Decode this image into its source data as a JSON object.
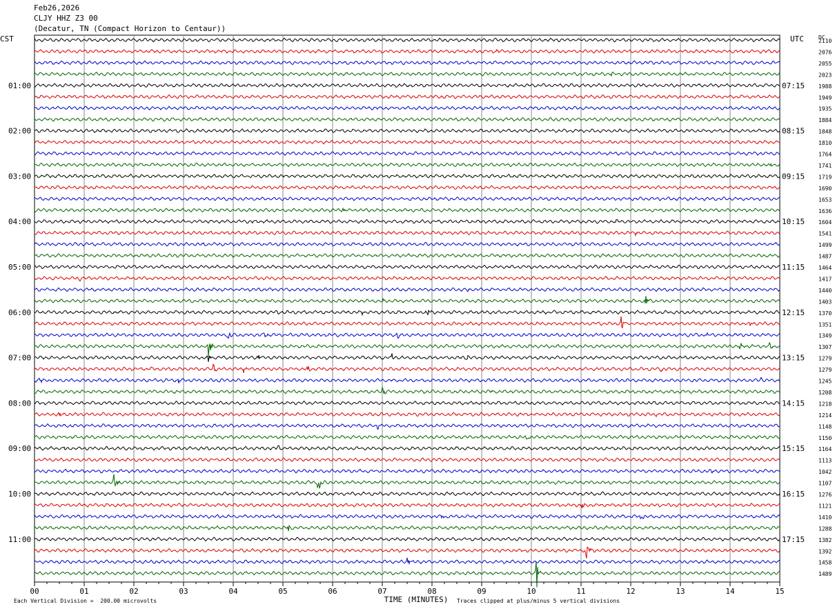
{
  "header": {
    "date": "Feb26,2026",
    "station": "CLJY HHZ Z3 00",
    "location": "(Decatur, TN (Compact Horizon to Centaur))"
  },
  "chart_data": {
    "type": "line",
    "title": "CLJY HHZ Z3 00",
    "left_axis_label": "CST",
    "right_axis_label": "UTC",
    "dc_label": "DC",
    "xlabel": "TIME (MINUTES)",
    "xlim": [
      0,
      15
    ],
    "x_ticks": [
      "00",
      "01",
      "02",
      "03",
      "04",
      "05",
      "06",
      "07",
      "08",
      "09",
      "10",
      "11",
      "12",
      "13",
      "14",
      "15"
    ],
    "left_hour_labels": [
      {
        "row": 4,
        "label": "01:00"
      },
      {
        "row": 8,
        "label": "02:00"
      },
      {
        "row": 12,
        "label": "03:00"
      },
      {
        "row": 16,
        "label": "04:00"
      },
      {
        "row": 20,
        "label": "05:00"
      },
      {
        "row": 24,
        "label": "06:00"
      },
      {
        "row": 28,
        "label": "07:00"
      },
      {
        "row": 32,
        "label": "08:00"
      },
      {
        "row": 36,
        "label": "09:00"
      },
      {
        "row": 40,
        "label": "10:00"
      },
      {
        "row": 44,
        "label": "11:00"
      }
    ],
    "right_hour_labels": [
      {
        "row": 4,
        "label": "07:15"
      },
      {
        "row": 8,
        "label": "08:15"
      },
      {
        "row": 12,
        "label": "09:15"
      },
      {
        "row": 16,
        "label": "10:15"
      },
      {
        "row": 20,
        "label": "11:15"
      },
      {
        "row": 24,
        "label": "12:15"
      },
      {
        "row": 28,
        "label": "13:15"
      },
      {
        "row": 32,
        "label": "14:15"
      },
      {
        "row": 36,
        "label": "15:15"
      },
      {
        "row": 40,
        "label": "16:15"
      },
      {
        "row": 44,
        "label": "17:15"
      }
    ],
    "trace_colors": [
      "#000000",
      "#dd0000",
      "#0000cc",
      "#006600"
    ],
    "dc_offsets": [
      2110,
      2076,
      2055,
      2023,
      1988,
      1949,
      1935,
      1884,
      1848,
      1810,
      1764,
      1741,
      1719,
      1690,
      1653,
      1636,
      1604,
      1541,
      1499,
      1487,
      1464,
      1417,
      1440,
      1403,
      1370,
      1351,
      1349,
      1307,
      1279,
      1279,
      1245,
      1208,
      1218,
      1214,
      1148,
      1150,
      1164,
      1113,
      1042,
      1107,
      1276,
      1121,
      1410,
      1288,
      1382,
      1392,
      1458,
      1489
    ],
    "events": [
      {
        "row": 1,
        "minute": 9.3,
        "amp": 3
      },
      {
        "row": 3,
        "minute": 11.6,
        "amp": 4
      },
      {
        "row": 11,
        "minute": 14.8,
        "amp": 3
      },
      {
        "row": 15,
        "minute": 6.2,
        "amp": 4
      },
      {
        "row": 16,
        "minute": 4.4,
        "amp": 3
      },
      {
        "row": 16,
        "minute": 11.7,
        "amp": 3
      },
      {
        "row": 17,
        "minute": 12.1,
        "amp": 4
      },
      {
        "row": 18,
        "minute": 3.4,
        "amp": 3
      },
      {
        "row": 21,
        "minute": 0.9,
        "amp": 5
      },
      {
        "row": 22,
        "minute": 8.7,
        "amp": 5
      },
      {
        "row": 23,
        "minute": 7.0,
        "amp": 4
      },
      {
        "row": 23,
        "minute": 12.3,
        "amp": 10
      },
      {
        "row": 24,
        "minute": 7.9,
        "amp": 12
      },
      {
        "row": 24,
        "minute": 6.6,
        "amp": 3
      },
      {
        "row": 24,
        "minute": 4.9,
        "amp": 3
      },
      {
        "row": 25,
        "minute": 11.8,
        "amp": 16
      },
      {
        "row": 25,
        "minute": 1.2,
        "amp": 4
      },
      {
        "row": 25,
        "minute": 2.8,
        "amp": 4
      },
      {
        "row": 25,
        "minute": 14.4,
        "amp": 4
      },
      {
        "row": 26,
        "minute": 3.9,
        "amp": 8
      },
      {
        "row": 26,
        "minute": 7.3,
        "amp": 7
      },
      {
        "row": 26,
        "minute": 4.6,
        "amp": 5
      },
      {
        "row": 26,
        "minute": 13.5,
        "amp": 5
      },
      {
        "row": 27,
        "minute": 3.5,
        "amp": 20
      },
      {
        "row": 27,
        "minute": 14.2,
        "amp": 7
      },
      {
        "row": 27,
        "minute": 14.8,
        "amp": 6
      },
      {
        "row": 28,
        "minute": 4.5,
        "amp": 7
      },
      {
        "row": 28,
        "minute": 7.2,
        "amp": 8
      },
      {
        "row": 28,
        "minute": 3.5,
        "amp": 9
      },
      {
        "row": 28,
        "minute": 8.7,
        "amp": 5
      },
      {
        "row": 29,
        "minute": 3.6,
        "amp": 9
      },
      {
        "row": 29,
        "minute": 2.3,
        "amp": 5
      },
      {
        "row": 29,
        "minute": 4.2,
        "amp": 6
      },
      {
        "row": 29,
        "minute": 5.5,
        "amp": 5
      },
      {
        "row": 29,
        "minute": 12.6,
        "amp": 5
      },
      {
        "row": 30,
        "minute": 0.1,
        "amp": 7
      },
      {
        "row": 30,
        "minute": 2.9,
        "amp": 6
      },
      {
        "row": 30,
        "minute": 14.6,
        "amp": 6
      },
      {
        "row": 31,
        "minute": 7.0,
        "amp": 8
      },
      {
        "row": 31,
        "minute": 9.2,
        "amp": 5
      },
      {
        "row": 33,
        "minute": 0.5,
        "amp": 6
      },
      {
        "row": 33,
        "minute": 12.5,
        "amp": 6
      },
      {
        "row": 34,
        "minute": 6.9,
        "amp": 5
      },
      {
        "row": 35,
        "minute": 9.9,
        "amp": 5
      },
      {
        "row": 36,
        "minute": 0.6,
        "amp": 6
      },
      {
        "row": 36,
        "minute": 4.9,
        "amp": 6
      },
      {
        "row": 38,
        "minute": 13.6,
        "amp": 8
      },
      {
        "row": 39,
        "minute": 1.6,
        "amp": 26
      },
      {
        "row": 39,
        "minute": 5.7,
        "amp": 30
      },
      {
        "row": 40,
        "minute": 9.7,
        "amp": 5
      },
      {
        "row": 41,
        "minute": 11.0,
        "amp": 10
      },
      {
        "row": 41,
        "minute": 14.8,
        "amp": 5
      },
      {
        "row": 42,
        "minute": 8.2,
        "amp": 7
      },
      {
        "row": 42,
        "minute": 12.2,
        "amp": 8
      },
      {
        "row": 43,
        "minute": 5.1,
        "amp": 7
      },
      {
        "row": 45,
        "minute": 11.1,
        "amp": 20
      },
      {
        "row": 46,
        "minute": 7.5,
        "amp": 10
      },
      {
        "row": 47,
        "minute": 10.1,
        "amp": 30
      }
    ]
  },
  "footer": {
    "scale_note": "Each Vertical Division =  200.00 microvolts",
    "clip_note": "Traces clipped at plus/minus 5 vertical divisions"
  }
}
